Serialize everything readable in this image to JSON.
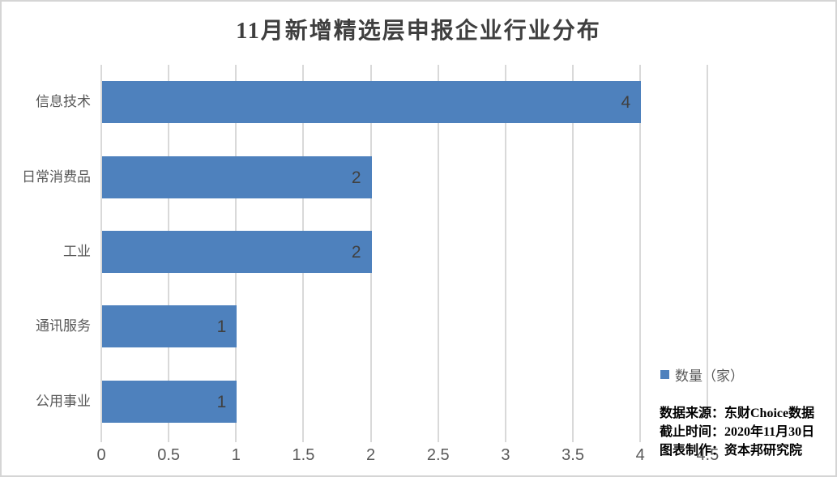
{
  "title": "11月新增精选层申报企业行业分布",
  "chart_data": {
    "type": "bar",
    "orientation": "horizontal",
    "title": "11月新增精选层申报企业行业分布",
    "categories": [
      "信息技术",
      "日常消费品",
      "工业",
      "通讯服务",
      "公用事业"
    ],
    "series": [
      {
        "name": "数量（家）",
        "values": [
          4,
          2,
          2,
          1,
          1
        ]
      }
    ],
    "data_labels": [
      4,
      2,
      2,
      1,
      1
    ],
    "xlabel": "",
    "ylabel": "",
    "xlim": [
      0,
      4.5
    ],
    "xticks": [
      0,
      0.5,
      1,
      1.5,
      2,
      2.5,
      3,
      3.5,
      4,
      4.5
    ],
    "grid": "vertical",
    "legend_position": "right",
    "data_label_position": "inside-end"
  },
  "legend": {
    "marker_color": "#4e81bd",
    "label": "数量（家）"
  },
  "footnote": {
    "lines": [
      "数据来源：东财Choice数据",
      "截止时间：2020年11月30日",
      "图表制作：资本邦研究院"
    ]
  },
  "colors": {
    "bar": "#4e81bd",
    "gridline": "#d9d9d9",
    "title_text": "#3f3f3f",
    "axis_text": "#595959",
    "data_label_text": "#404040",
    "footnote_text": "#000000",
    "canvas_border": "#d5d5d5",
    "background": "#ffffff"
  }
}
